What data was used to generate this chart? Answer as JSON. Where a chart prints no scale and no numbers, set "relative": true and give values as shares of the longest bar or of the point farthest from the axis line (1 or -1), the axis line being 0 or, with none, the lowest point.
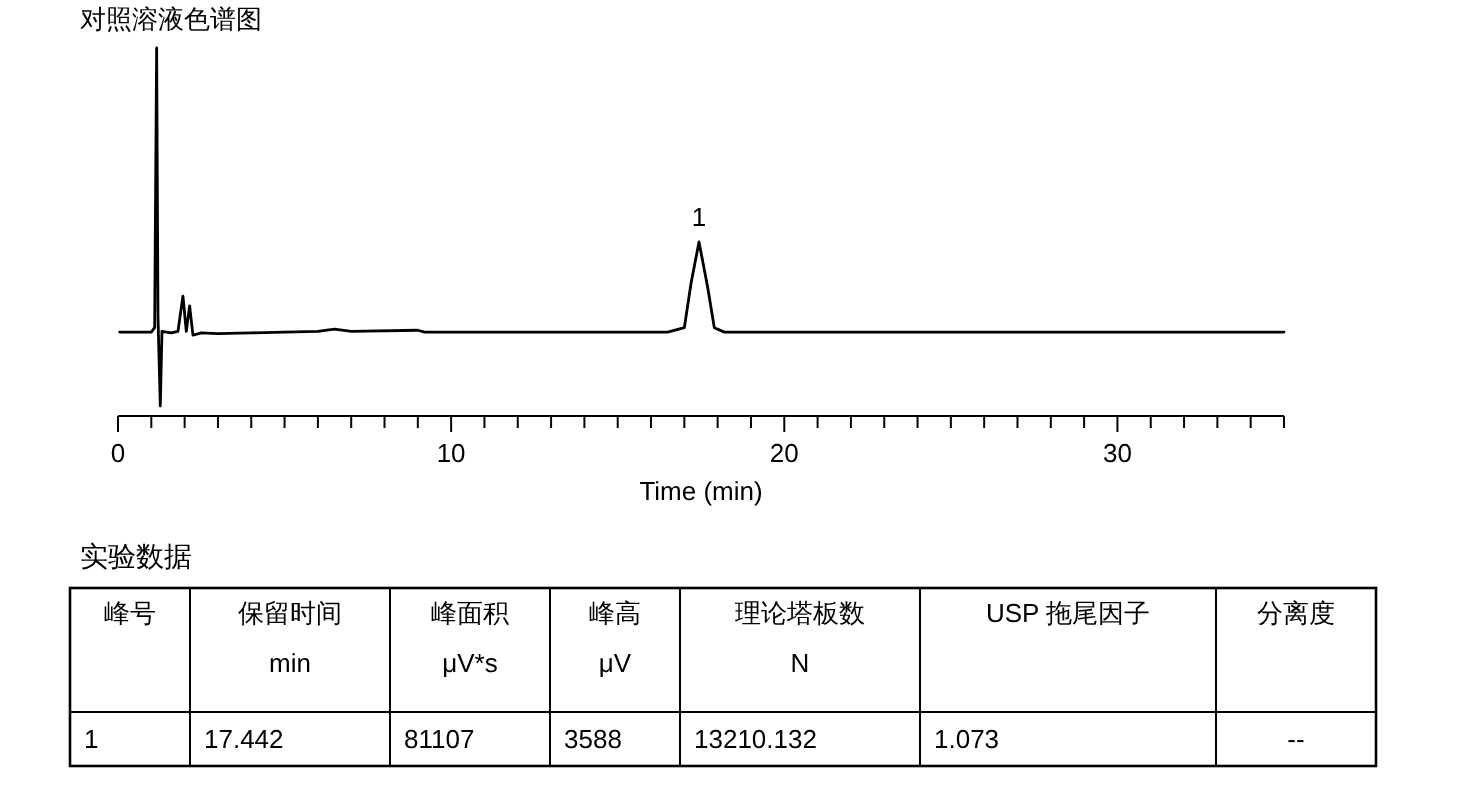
{
  "chart_data": {
    "type": "line",
    "title": "对照溶液色谱图",
    "xlabel": "Time (min)",
    "relative": true,
    "tick_labels": "x",
    "xlim": [
      0,
      35
    ],
    "xticks": [
      0,
      {
        "value": 1,
        "label": null
      },
      {
        "value": 2,
        "label": null
      },
      {
        "value": 3,
        "label": null
      },
      {
        "value": 4,
        "label": null
      },
      {
        "value": 5,
        "label": null
      },
      {
        "value": 6,
        "label": null
      },
      {
        "value": 7,
        "label": null
      },
      {
        "value": 8,
        "label": null
      },
      {
        "value": 9,
        "label": null
      },
      10,
      {
        "value": 11,
        "label": null
      },
      {
        "value": 12,
        "label": null
      },
      {
        "value": 13,
        "label": null
      },
      {
        "value": 14,
        "label": null
      },
      {
        "value": 15,
        "label": null
      },
      {
        "value": 16,
        "label": null
      },
      {
        "value": 17,
        "label": null
      },
      {
        "value": 18,
        "label": null
      },
      {
        "value": 19,
        "label": null
      },
      20,
      {
        "value": 21,
        "label": null
      },
      {
        "value": 22,
        "label": null
      },
      {
        "value": 23,
        "label": null
      },
      {
        "value": 24,
        "label": null
      },
      {
        "value": 25,
        "label": null
      },
      {
        "value": 26,
        "label": null
      },
      {
        "value": 27,
        "label": null
      },
      {
        "value": 28,
        "label": null
      },
      {
        "value": 29,
        "label": null
      },
      30,
      {
        "value": 31,
        "label": null
      },
      {
        "value": 32,
        "label": null
      },
      {
        "value": 33,
        "label": null
      },
      {
        "value": 34,
        "label": null
      },
      {
        "value": 35,
        "label": null
      }
    ],
    "series": [
      {
        "color": "#000000",
        "x": [
          0.05,
          1.0,
          1.1,
          1.16,
          1.2,
          1.27,
          1.32,
          1.6,
          1.8,
          1.95,
          2.05,
          2.15,
          2.25,
          2.5,
          3.0,
          4.0,
          5.0,
          6.0,
          6.5,
          7.0,
          9.0,
          9.2,
          12.0,
          16.5,
          17.0,
          17.2,
          17.44,
          17.7,
          17.9,
          18.2,
          25.0,
          35.0
        ],
        "values": [
          0.228,
          0.228,
          0.24,
          1.0,
          0.27,
          0.027,
          0.23,
          0.226,
          0.23,
          0.326,
          0.23,
          0.299,
          0.22,
          0.226,
          0.224,
          0.226,
          0.228,
          0.23,
          0.236,
          0.23,
          0.233,
          0.228,
          0.228,
          0.228,
          0.24,
          0.36,
          0.473,
          0.35,
          0.24,
          0.228,
          0.228,
          0.228
        ]
      }
    ],
    "annotations": [
      {
        "text": "1",
        "x": 17.442,
        "y": 0.473
      },
      "实验数据",
      "峰号",
      "保留时间\nmin",
      "峰面积\nμV*s",
      "峰高\nμV",
      "理论塔板数\nN",
      "USP 拖尾因子",
      "分离度",
      "1",
      "17.442",
      "81107",
      "3588",
      "13210.132",
      "1.073",
      "--"
    ]
  }
}
